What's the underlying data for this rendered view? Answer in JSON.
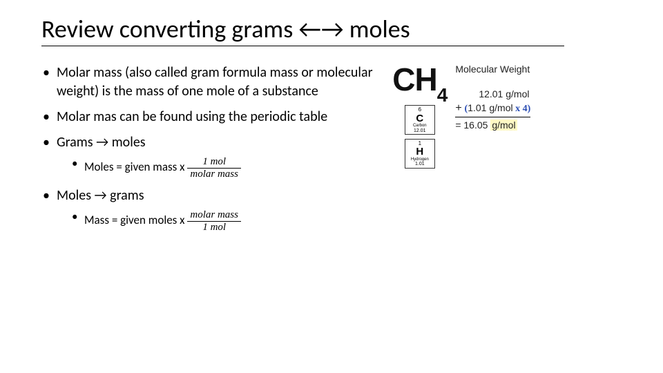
{
  "title": "Review converting grams ←→ moles",
  "bullets": {
    "b1": "Molar mass (also called gram formula mass or molecular weight) is the mass of one mole of a substance",
    "b2": "Molar mas can be found using the periodic table",
    "b3": "Grams → moles",
    "b3s": "Moles = given mass x ",
    "b3frac_num": "1 mol",
    "b3frac_den": "molar mass",
    "b4": "Moles → grams",
    "b4s": "Mass = given moles x ",
    "b4frac_num": "molar mass",
    "b4frac_den": "1 mol"
  },
  "figure": {
    "formula_main": "CH",
    "formula_sub": "4",
    "element_c": {
      "atomic_number": "6",
      "symbol": "C",
      "name": "Carbon",
      "mass": "12.01"
    },
    "element_h": {
      "atomic_number": "1",
      "symbol": "H",
      "name": "Hydrogen",
      "mass": "1.01"
    },
    "calc_heading": "Molecular Weight",
    "line1": "12.01 g/mol",
    "plus": "+",
    "line2_open": "(",
    "line2_val": "1.01 g/mol",
    "line2_hand": " x 4",
    "line2_close": ")",
    "result_eq": "= ",
    "result_val": "16.05 ",
    "result_unit": "g/mol"
  },
  "colors": {
    "text": "#000000",
    "background": "#ffffff",
    "hand_blue": "#2a4db3",
    "highlight": "#fff9c4"
  }
}
